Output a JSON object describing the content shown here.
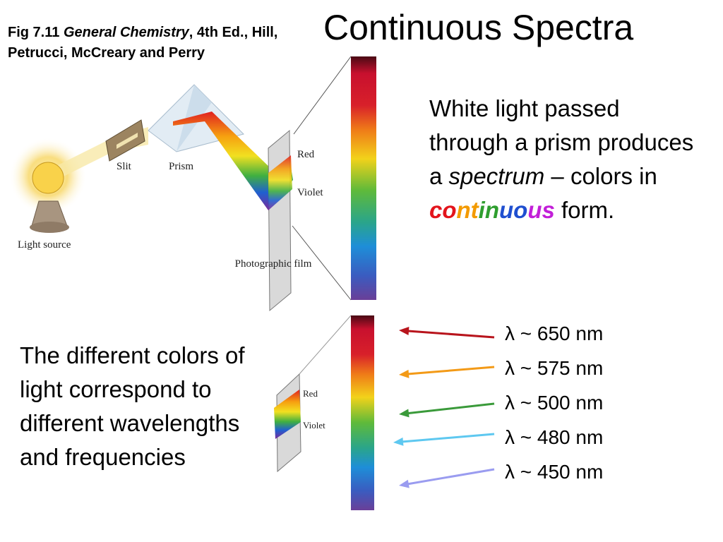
{
  "caption": {
    "figure": "Fig 7.11",
    "book": "General Chemistry",
    "rest": ", 4th Ed., Hill, Petrucci, McCreary and Perry"
  },
  "title": "Continuous Spectra",
  "intro": {
    "before": "White light passed through a prism produces a ",
    "emphasis": "spectrum",
    "middle": " – colors in ",
    "continuous": [
      {
        "text": "co",
        "color": "#e3141c"
      },
      {
        "text": "nt",
        "color": "#f39a00"
      },
      {
        "text": "in",
        "color": "#2f9e2f"
      },
      {
        "text": "uo",
        "color": "#1f4fd0"
      },
      {
        "text": "us",
        "color": "#c21fd8"
      }
    ],
    "after": " form."
  },
  "diagram": {
    "slit": "Slit",
    "prism": "Prism",
    "light_source": "Light source",
    "red": "Red",
    "violet": "Violet",
    "film": "Photographic film"
  },
  "lower_diagram": {
    "red": "Red",
    "violet": "Violet"
  },
  "explanation": "The different colors of light correspond to different wavelengths and frequencies",
  "wavelengths": [
    {
      "label": "λ ~ 650 nm",
      "color": "#b8141c"
    },
    {
      "label": "λ ~ 575 nm",
      "color": "#f39a17"
    },
    {
      "label": "λ ~ 500 nm",
      "color": "#3a9a3a"
    },
    {
      "label": "λ ~ 480 nm",
      "color": "#5ec8f0"
    },
    {
      "label": "λ ~ 450 nm",
      "color": "#9a9cf0"
    }
  ]
}
